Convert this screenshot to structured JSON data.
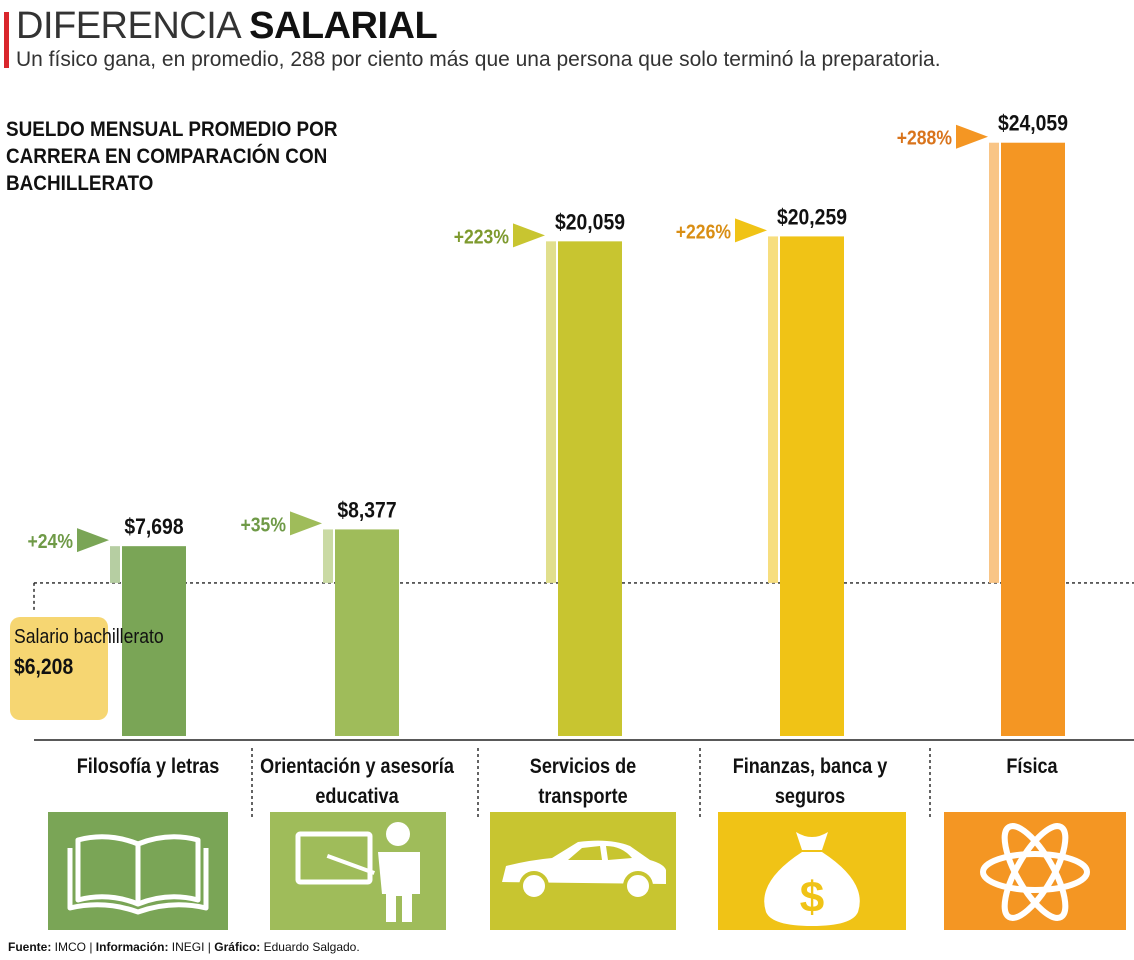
{
  "header": {
    "title_light": "DIFERENCIA ",
    "title_bold": "SALARIAL",
    "subtitle": "Un físico gana, en promedio, 288 por ciento más que una persona que solo terminó la preparatoria."
  },
  "chart_data": {
    "type": "bar",
    "title": "SUELDO MENSUAL PROMEDIO POR CARRERA EN COMPARACIÓN CON BACHILLERATO",
    "categories": [
      "Filosofía y letras",
      "Orientación y asesoría educativa",
      "Servicios de transporte",
      "Finanzas, banca y seguros",
      "Física"
    ],
    "values": [
      7698,
      8377,
      20059,
      20259,
      24059
    ],
    "value_labels": [
      "$7,698",
      "$8,377",
      "$20,059",
      "$20,259",
      "$24,059"
    ],
    "percent_labels": [
      "+24%",
      "+35%",
      "+223%",
      "+226%",
      "+288%"
    ],
    "baseline": {
      "label": "Salario bachillerato",
      "value": 6208,
      "value_label": "$6,208"
    },
    "bar_colors": [
      "#7aa556",
      "#9fbc5a",
      "#c8c530",
      "#f0c316",
      "#f49623"
    ],
    "percent_colors": [
      "#6f9a47",
      "#6f9a47",
      "#7e9a2e",
      "#d98e14",
      "#d9741c"
    ],
    "icons": [
      "book-icon",
      "teacher-icon",
      "car-icon",
      "money-bag-icon",
      "atom-icon"
    ],
    "grid": false
  },
  "source": {
    "l1": "Fuente:",
    "v1": " IMCO | ",
    "l2": "Información:",
    "v2": " INEGI | ",
    "l3": "Gráfico:",
    "v3": " Eduardo Salgado."
  }
}
